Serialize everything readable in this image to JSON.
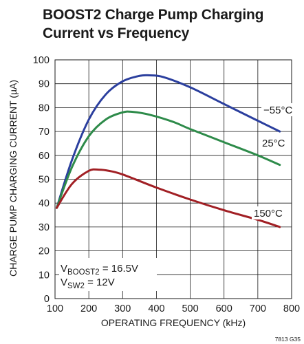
{
  "chart_data": {
    "type": "line",
    "title_line1": "BOOST2 Charge Pump Charging",
    "title_line2": "Current vs Frequency",
    "xlabel": "OPERATING FREQUENCY (kHz)",
    "ylabel": "CHARGE PUMP CHARGING CURRENT (µA)",
    "xlim": [
      100,
      800
    ],
    "ylim": [
      0,
      100
    ],
    "x_ticks": [
      "100",
      "200",
      "300",
      "400",
      "500",
      "600",
      "700",
      "800"
    ],
    "y_ticks": [
      "0",
      "10",
      "20",
      "30",
      "40",
      "50",
      "60",
      "70",
      "80",
      "90",
      "100"
    ],
    "grid": true,
    "series": [
      {
        "name": "−55°C",
        "color": "#2b3f9e",
        "x": [
          105,
          150,
          200,
          250,
          300,
          350,
          380,
          420,
          500,
          600,
          700,
          765
        ],
        "y": [
          38,
          58,
          75,
          85.5,
          91,
          93.3,
          93.5,
          92.8,
          88.5,
          81.5,
          74.5,
          70
        ]
      },
      {
        "name": "25°C",
        "color": "#2e8b4a",
        "x": [
          105,
          150,
          200,
          250,
          300,
          330,
          380,
          450,
          500,
          600,
          700,
          765
        ],
        "y": [
          38,
          55,
          68,
          75,
          78,
          78.2,
          77,
          74,
          71,
          65.5,
          60,
          56
        ]
      },
      {
        "name": "150°C",
        "color": "#a11f24",
        "x": [
          105,
          150,
          200,
          230,
          260,
          300,
          400,
          500,
          600,
          700,
          765
        ],
        "y": [
          38,
          48,
          53.5,
          54,
          53.5,
          52,
          46.5,
          41.5,
          37,
          33,
          30
        ]
      }
    ],
    "annotations": {
      "v_boost_main": "V",
      "v_boost_sub": "BOOST2",
      "v_boost_val": " = 16.5V",
      "v_sw_main": "V",
      "v_sw_sub": "SW2",
      "v_sw_val": " = 12V"
    },
    "figure_code": "7813 G35"
  }
}
